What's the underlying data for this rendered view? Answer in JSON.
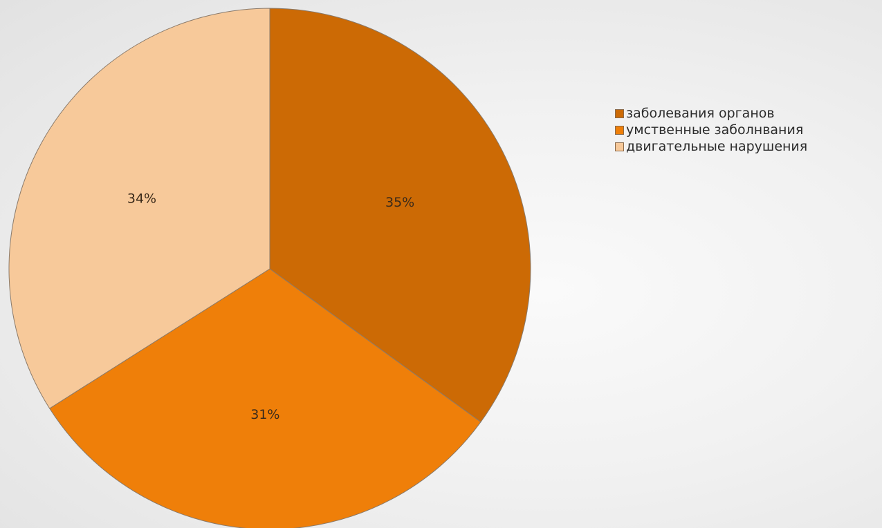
{
  "chart_data": {
    "type": "pie",
    "slices": [
      {
        "label": "заболевания органов",
        "value": 35,
        "value_label": "35%",
        "color": "#cc6a05"
      },
      {
        "label": "умственные заболнвания",
        "value": 31,
        "value_label": "31%",
        "color": "#ef7f09"
      },
      {
        "label": "двигательные нарушения",
        "value": 34,
        "value_label": "34%",
        "color": "#f7c99a"
      }
    ],
    "start_angle": "12 o'clock",
    "direction": "clockwise",
    "legend_position": "top-right",
    "slice_border_color": "#8a7a6a"
  }
}
